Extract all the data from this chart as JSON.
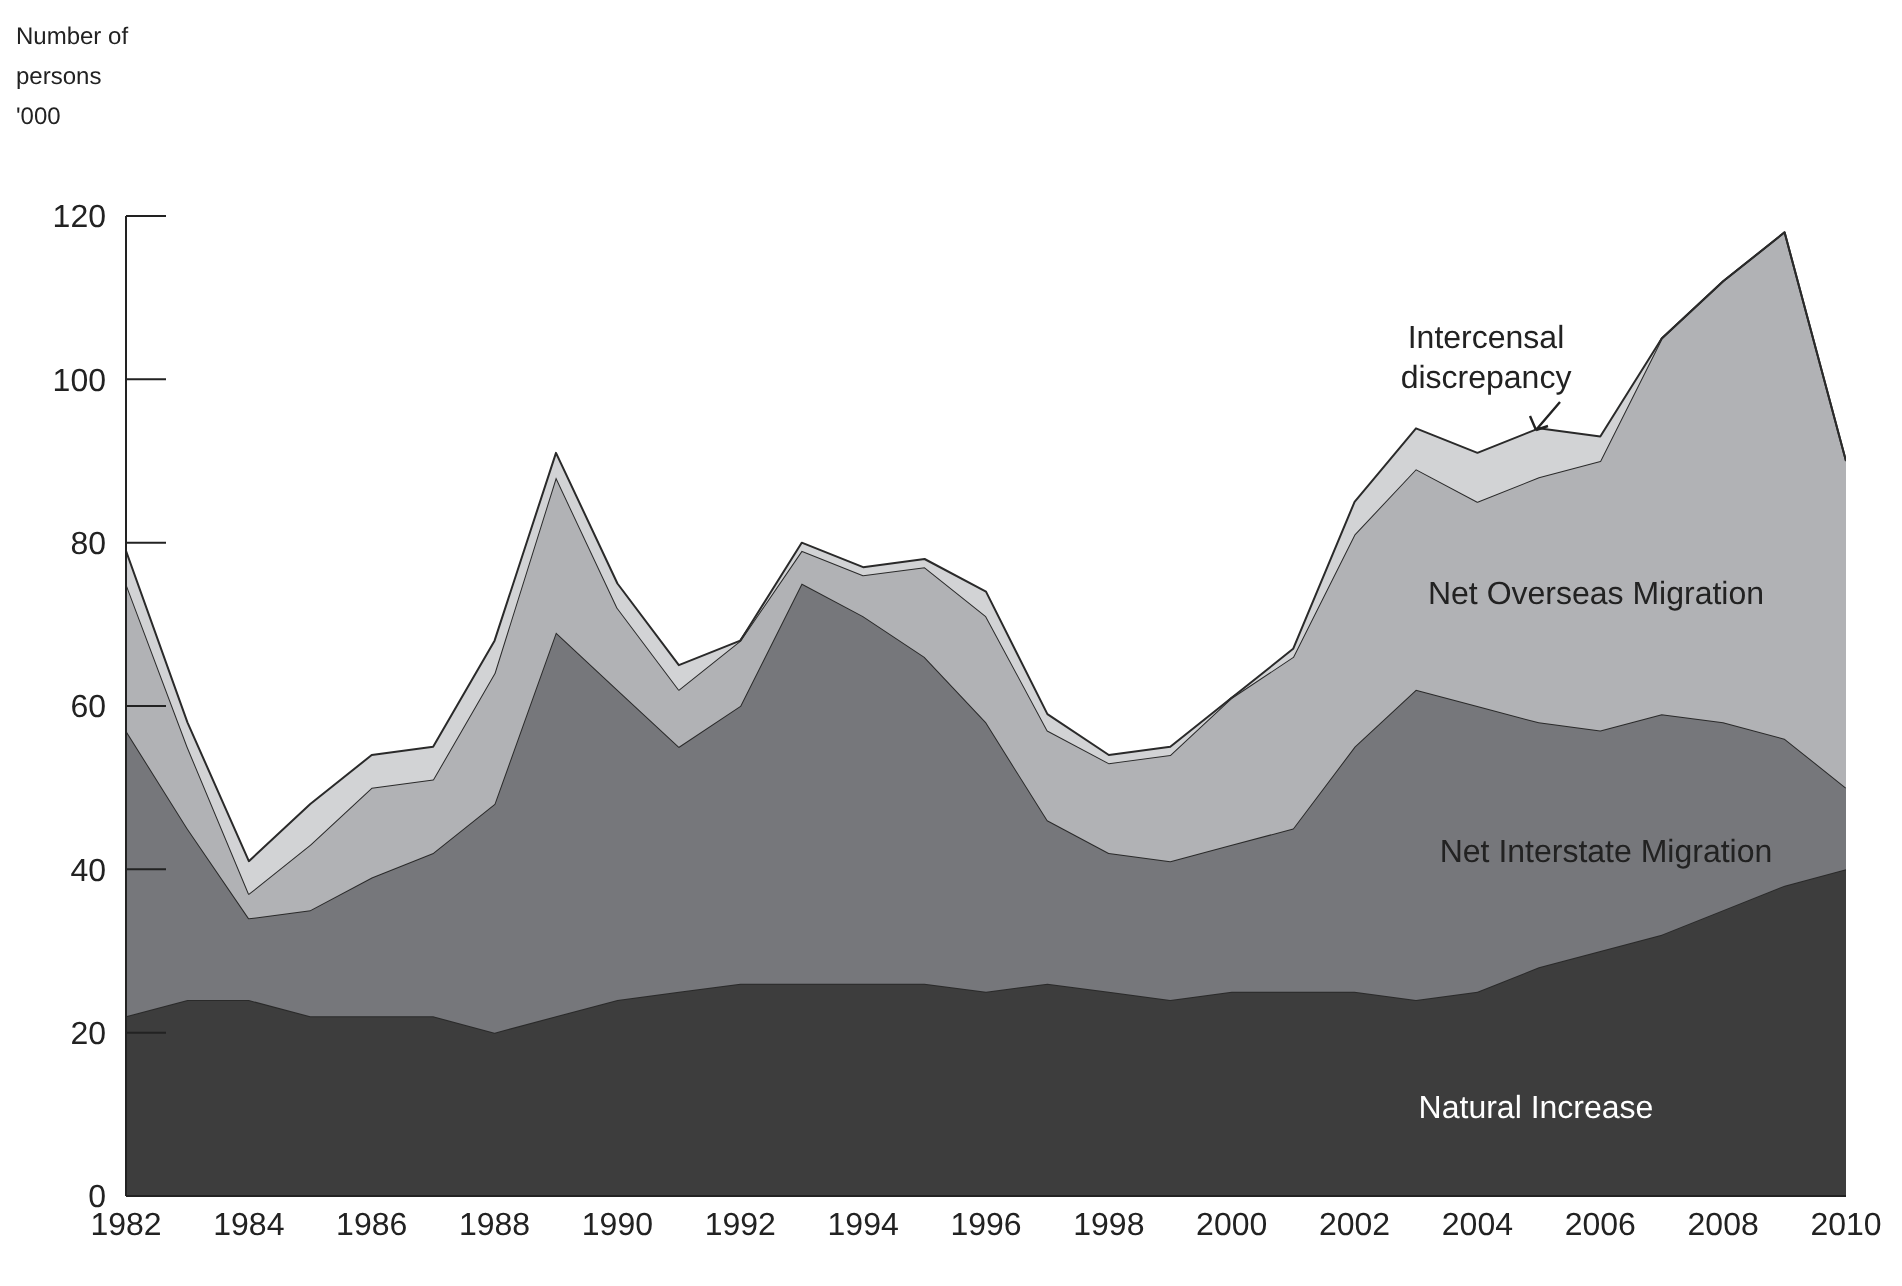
{
  "chart_data": {
    "type": "area",
    "stacked": true,
    "ylabel": "Number of persons '000",
    "x": [
      1982,
      1983,
      1984,
      1985,
      1986,
      1987,
      1988,
      1989,
      1990,
      1991,
      1992,
      1993,
      1994,
      1995,
      1996,
      1997,
      1998,
      1999,
      2000,
      2001,
      2002,
      2003,
      2004,
      2005,
      2006,
      2007,
      2008,
      2009,
      2010
    ],
    "xlim": [
      1982,
      2010
    ],
    "xticks": [
      1982,
      1984,
      1986,
      1988,
      1990,
      1992,
      1994,
      1996,
      1998,
      2000,
      2002,
      2004,
      2006,
      2008,
      2010
    ],
    "ylim": [
      0,
      120
    ],
    "yticks": [
      0,
      20,
      40,
      60,
      80,
      100,
      120
    ],
    "grid": false,
    "legend": false,
    "series": [
      {
        "name": "Natural Increase",
        "color": "#3d3d3d",
        "values": [
          22,
          24,
          24,
          22,
          22,
          22,
          20,
          22,
          24,
          25,
          26,
          26,
          26,
          26,
          25,
          26,
          25,
          24,
          25,
          25,
          25,
          24,
          25,
          28,
          30,
          32,
          35,
          38,
          40
        ]
      },
      {
        "name": "Net Interstate Migration",
        "color": "#76777b",
        "values": [
          35,
          21,
          10,
          13,
          17,
          20,
          28,
          47,
          38,
          30,
          34,
          49,
          45,
          40,
          33,
          20,
          17,
          17,
          18,
          20,
          30,
          38,
          35,
          30,
          27,
          27,
          23,
          18,
          10
        ]
      },
      {
        "name": "Net Overseas Migration",
        "color": "#b1b2b5",
        "values": [
          18,
          10,
          3,
          8,
          11,
          9,
          16,
          19,
          10,
          7,
          8,
          4,
          5,
          11,
          13,
          11,
          11,
          13,
          18,
          21,
          26,
          27,
          25,
          30,
          33,
          46,
          54,
          62,
          40
        ]
      },
      {
        "name": "Intercensal discrepancy",
        "color": "#d2d3d5",
        "values": [
          4,
          3,
          4,
          5,
          4,
          4,
          4,
          3,
          3,
          3,
          0,
          1,
          1,
          1,
          3,
          2,
          1,
          1,
          0,
          1,
          4,
          5,
          6,
          6,
          3,
          0,
          0,
          0,
          0
        ]
      }
    ]
  }
}
